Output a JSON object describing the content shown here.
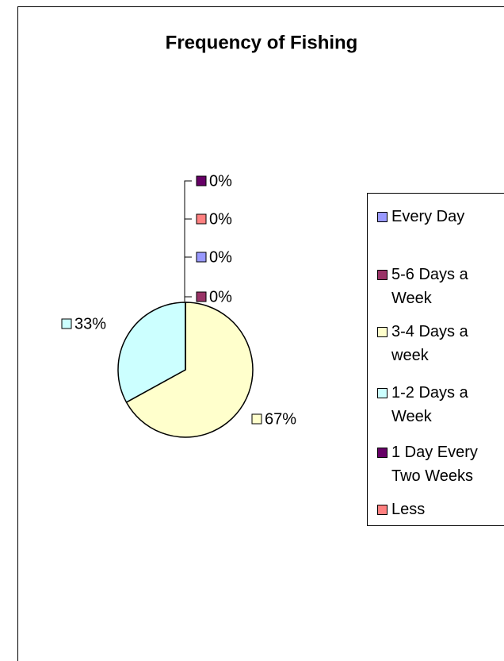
{
  "chart_data": {
    "type": "pie",
    "title": "Frequency of Fishing",
    "categories": [
      "Every Day",
      "5-6 Days a Week",
      "3-4 Days a week",
      "1-2 Days a Week",
      "1 Day Every Two Weeks",
      "Less"
    ],
    "values": [
      0,
      0,
      67,
      33,
      0,
      0
    ],
    "value_labels": [
      "0%",
      "0%",
      "67%",
      "33%",
      "0%",
      "0%"
    ],
    "colors": [
      "#9999ff",
      "#993366",
      "#ffffcc",
      "#ccffff",
      "#660066",
      "#ff8080"
    ],
    "legend": "right"
  }
}
